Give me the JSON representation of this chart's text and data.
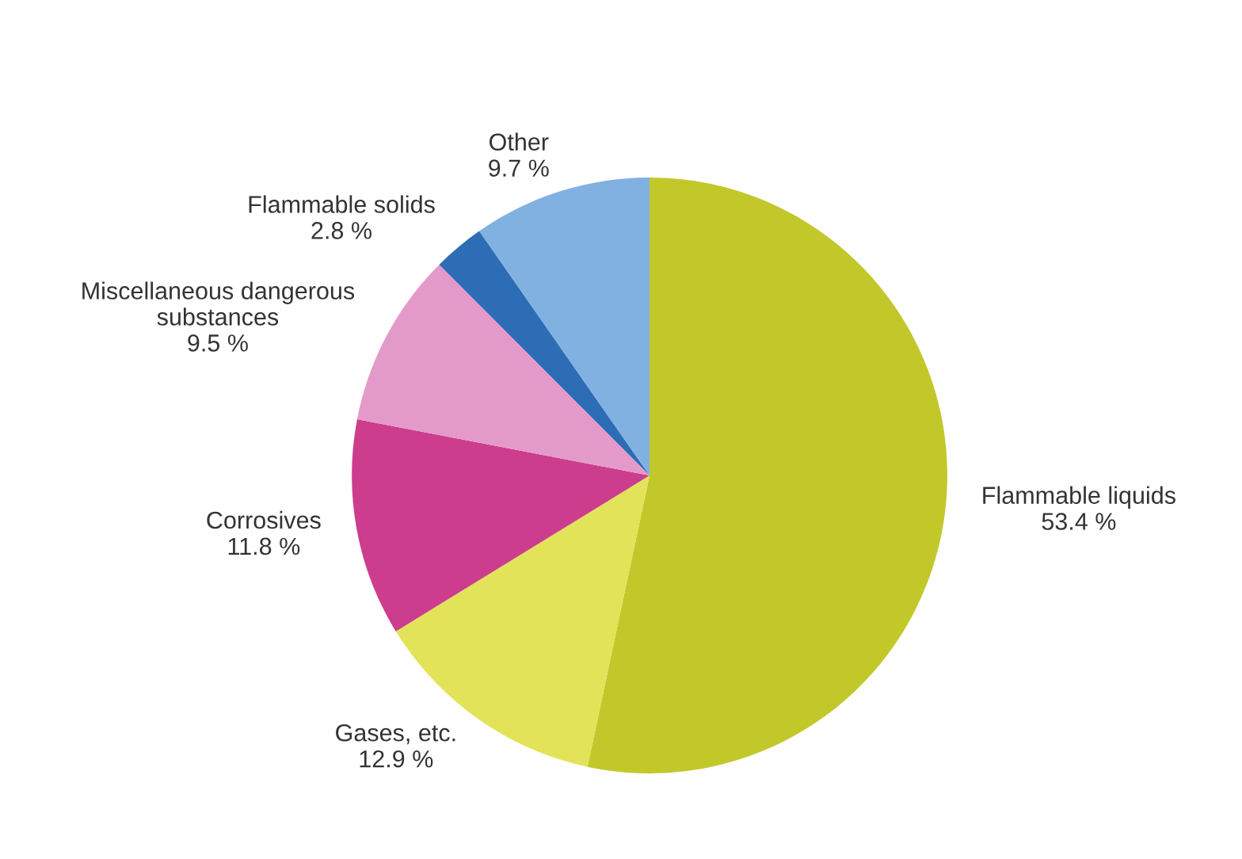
{
  "chart_data": {
    "type": "pie",
    "categories": [
      "Flammable liquids",
      "Gases, etc.",
      "Corrosives",
      "Miscellaneous dangerous\nsubstances",
      "Flammable solids",
      "Other"
    ],
    "values": [
      53.4,
      12.9,
      11.8,
      9.5,
      2.8,
      9.7
    ],
    "value_labels": [
      "53.4 %",
      "12.9 %",
      "11.8 %",
      "9.5 %",
      "2.8 %",
      "9.7 %"
    ],
    "colors": [
      "#c2c82a",
      "#e3e35a",
      "#cc3d8e",
      "#e49ac8",
      "#2d6db5",
      "#80b1e1"
    ],
    "legend": false
  }
}
